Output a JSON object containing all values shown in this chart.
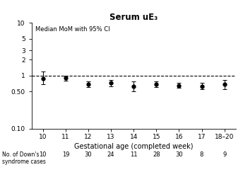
{
  "title": "Serum uE₃",
  "xlabel": "Gestational age (completed week)",
  "ylabel": "Median MoM with 95% CI",
  "x_labels": [
    "10",
    "11",
    "12",
    "13",
    "14",
    "15",
    "16",
    "17",
    "18–20"
  ],
  "x_positions": [
    1,
    2,
    3,
    4,
    5,
    6,
    7,
    8,
    9
  ],
  "medians": [
    0.88,
    0.9,
    0.68,
    0.72,
    0.63,
    0.68,
    0.65,
    0.63,
    0.68
  ],
  "ci_low": [
    0.68,
    0.8,
    0.6,
    0.63,
    0.51,
    0.6,
    0.58,
    0.56,
    0.56
  ],
  "ci_high": [
    1.18,
    1.0,
    0.77,
    0.83,
    0.77,
    0.78,
    0.73,
    0.72,
    0.83
  ],
  "n_cases": [
    "10",
    "19",
    "30",
    "24",
    "11",
    "28",
    "30",
    "8",
    "9"
  ],
  "n_label": "No. of Down's\nsyndrome cases",
  "dashed_line": 1.0,
  "ylim_log": [
    0.1,
    10.0
  ],
  "yticks": [
    0.1,
    0.5,
    1.0,
    2.0,
    3.0,
    5.0,
    10.0
  ],
  "ytick_labels": [
    "0.10",
    "0.50",
    "1",
    "2",
    "3",
    "5",
    "10"
  ],
  "marker_color": "#000000",
  "background_color": "#ffffff"
}
